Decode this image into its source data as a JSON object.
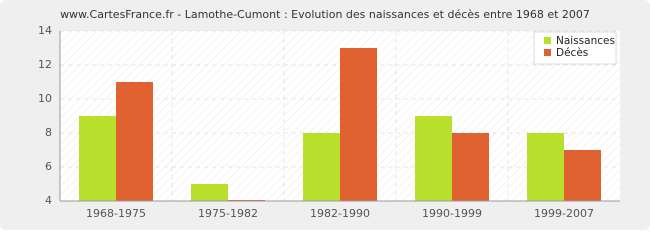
{
  "chart_data": {
    "type": "bar",
    "title": "www.CartesFrance.fr - Lamothe-Cumont : Evolution des naissances et décès entre 1968 et 2007",
    "categories": [
      "1968-1975",
      "1975-1982",
      "1982-1990",
      "1990-1999",
      "1999-2007"
    ],
    "series": [
      {
        "name": "Naissances",
        "color": "#b8e02c",
        "values": [
          9,
          5,
          8,
          9,
          8
        ]
      },
      {
        "name": "Décès",
        "color": "#e06230",
        "values": [
          11,
          4,
          13,
          8,
          7
        ]
      }
    ],
    "ylim": [
      4,
      14
    ],
    "yticks": [
      4,
      6,
      8,
      10,
      12,
      14
    ],
    "grid": true,
    "legend": "top-right"
  }
}
